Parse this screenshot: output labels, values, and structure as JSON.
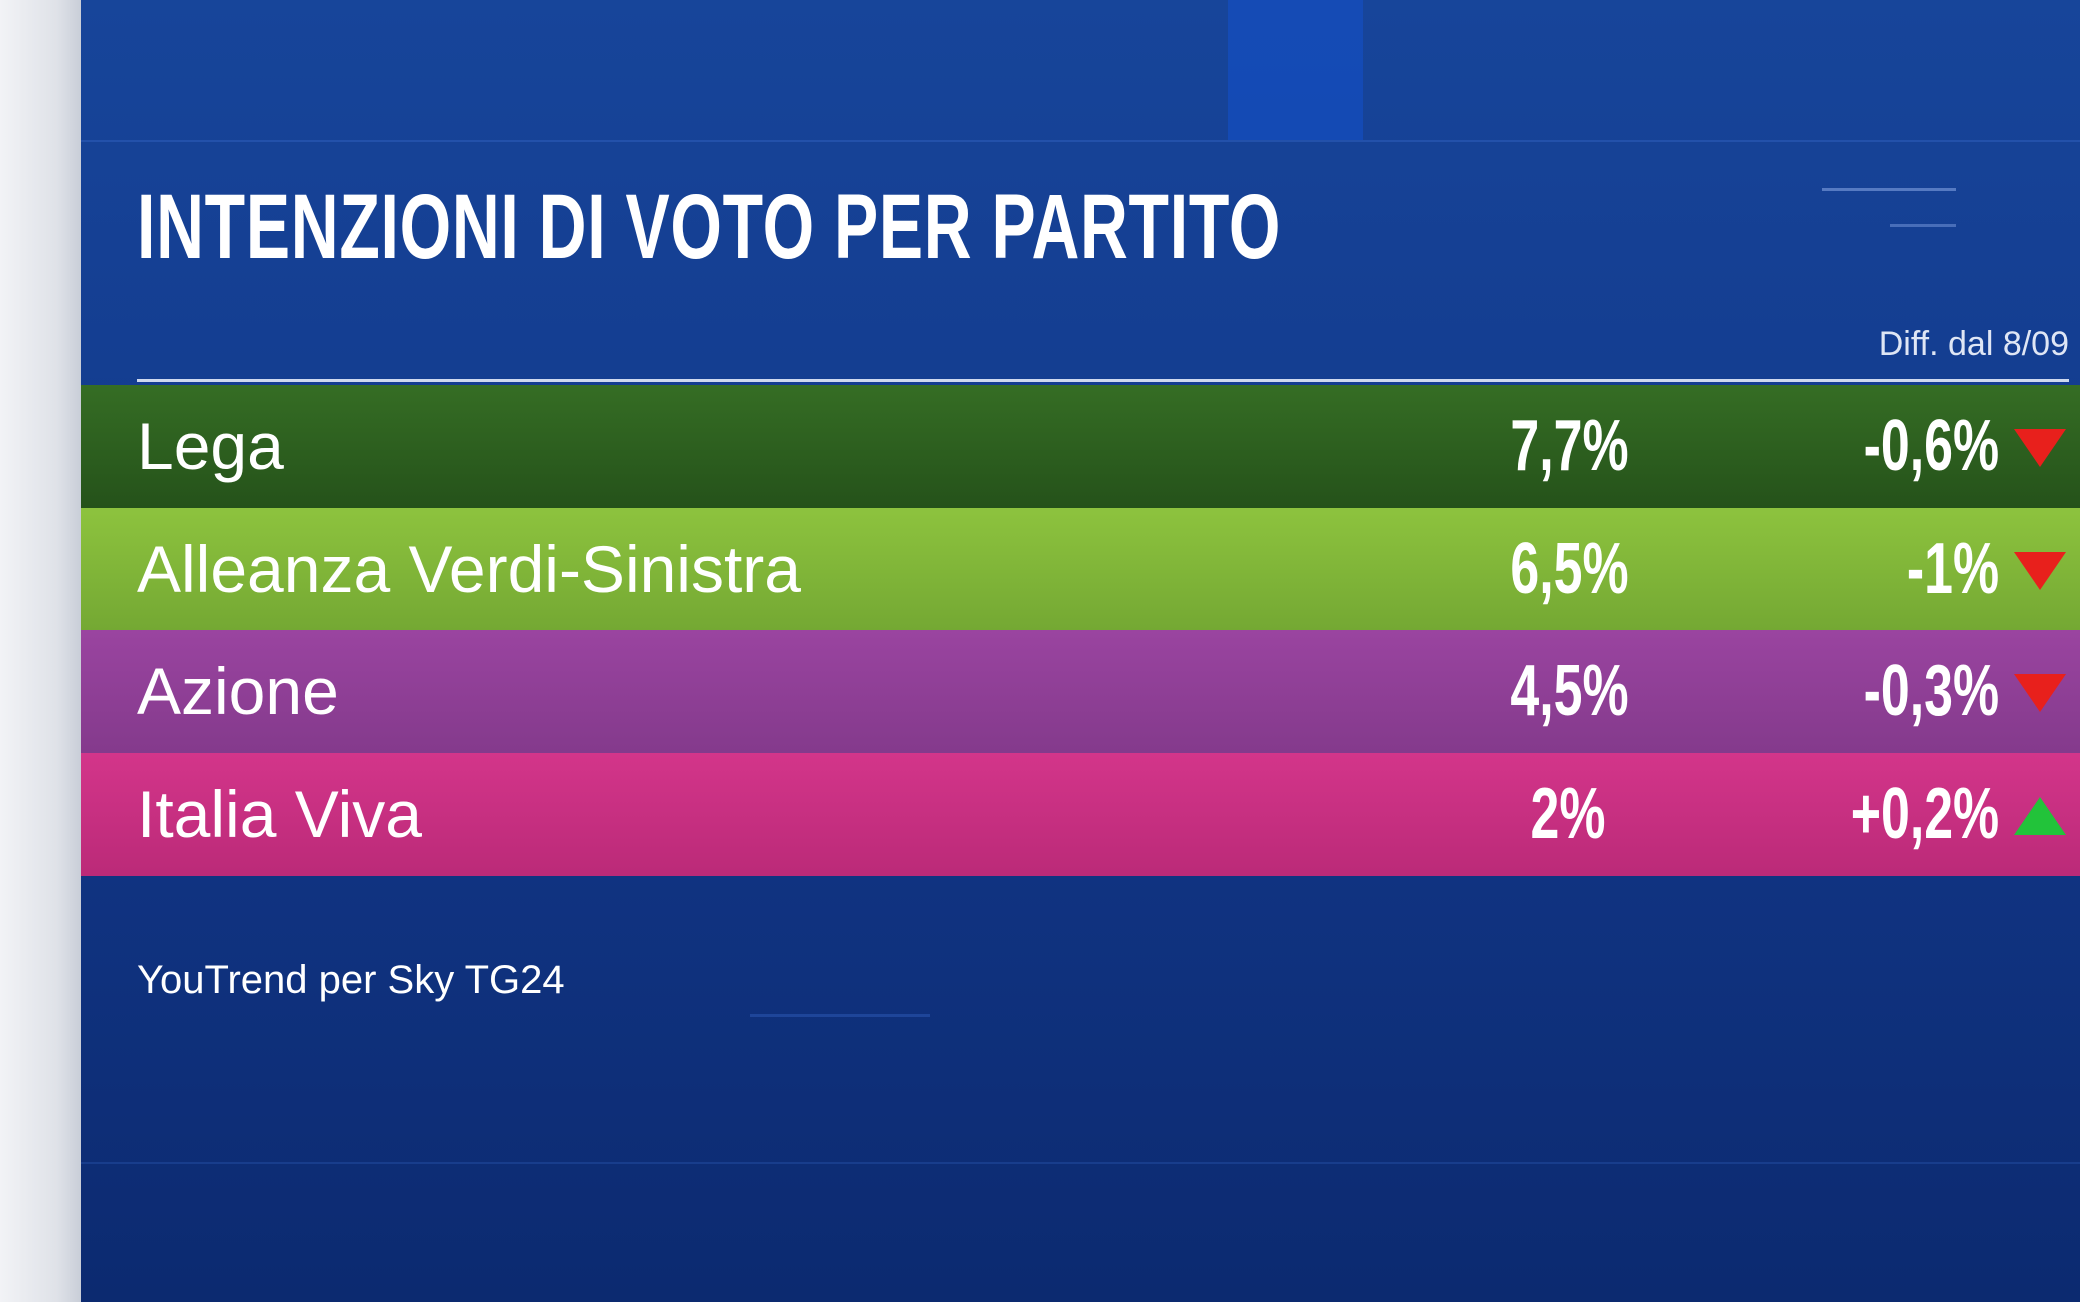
{
  "header": {
    "title": "INTENZIONI DI VOTO PER PARTITO",
    "diff_label": "Diff. dal 8/09"
  },
  "table": {
    "rows": [
      {
        "party": "Lega",
        "value": "7,7%",
        "change": "-0,6%"
      },
      {
        "party": "Alleanza Verdi-Sinistra",
        "value": "6,5%",
        "change": "-1%"
      },
      {
        "party": "Azione",
        "value": "4,5%",
        "change": "-0,3%"
      },
      {
        "party": "Italia Viva",
        "value": "2%",
        "change": "+0,2%"
      }
    ]
  },
  "footer": {
    "source": "YouTrend per Sky TG24"
  }
}
